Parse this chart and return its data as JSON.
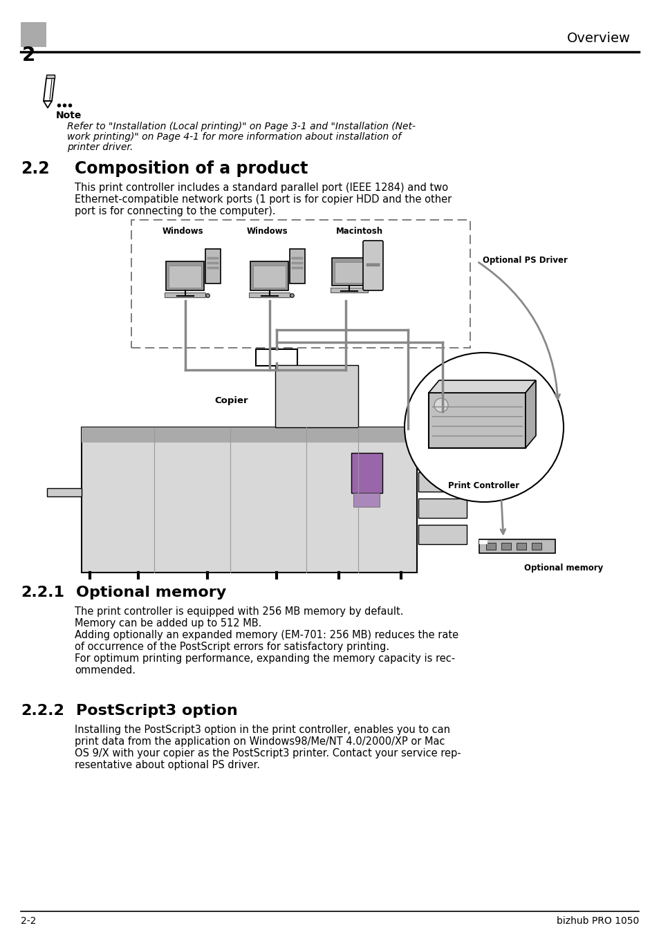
{
  "bg_color": "#ffffff",
  "header_number": "2",
  "header_title": "Overview",
  "footer_left": "2-2",
  "footer_right": "bizhub PRO 1050",
  "note_line1": "Refer to \"Installation (Local printing)\" on Page 3-1 and \"Installation (Net-",
  "note_line2": "work printing)\" on Page 4-1 for more information about installation of",
  "note_line3": "printer driver.",
  "sec_num": "2.2",
  "sec_title": "Composition of a product",
  "sec_body1": "This print controller includes a standard parallel port (IEEE 1284) and two",
  "sec_body2": "Ethernet-compatible network ports (1 port is for copier HDD and the other",
  "sec_body3": "port is for connecting to the computer).",
  "sub1_num": "2.2.1",
  "sub1_title": "Optional memory",
  "sub1_b1": "The print controller is equipped with 256 MB memory by default.",
  "sub1_b2": "Memory can be added up to 512 MB.",
  "sub1_b3": "Adding optionally an expanded memory (EM-701: 256 MB) reduces the rate",
  "sub1_b4": "of occurrence of the PostScript errors for satisfactory printing.",
  "sub1_b5": "For optimum printing performance, expanding the memory capacity is rec-",
  "sub1_b6": "ommended.",
  "sub2_num": "2.2.2",
  "sub2_title": "PostScript3 option",
  "sub2_b1": "Installing the PostScript3 option in the print controller, enables you to can",
  "sub2_b2": "print data from the application on Windows98/Me/NT 4.0/2000/XP or Mac",
  "sub2_b3": "OS 9/X with your copier as the PostScript3 printer. Contact your service rep-",
  "sub2_b4": "resentative about optional PS driver.",
  "lbl_win1": "Windows",
  "lbl_win2": "Windows",
  "lbl_mac": "Macintosh",
  "lbl_copier": "Copier",
  "lbl_ps": "Optional PS Driver",
  "lbl_pc": "Print Controller",
  "lbl_mem": "Optional memory",
  "lbl_note": "Note",
  "gray_box": "#aaaaaa",
  "line_color": "#000000",
  "diagram_gray": "#bbbbbb",
  "diagram_dark": "#888888",
  "copier_color": "#cccccc",
  "purple_color": "#9966aa"
}
